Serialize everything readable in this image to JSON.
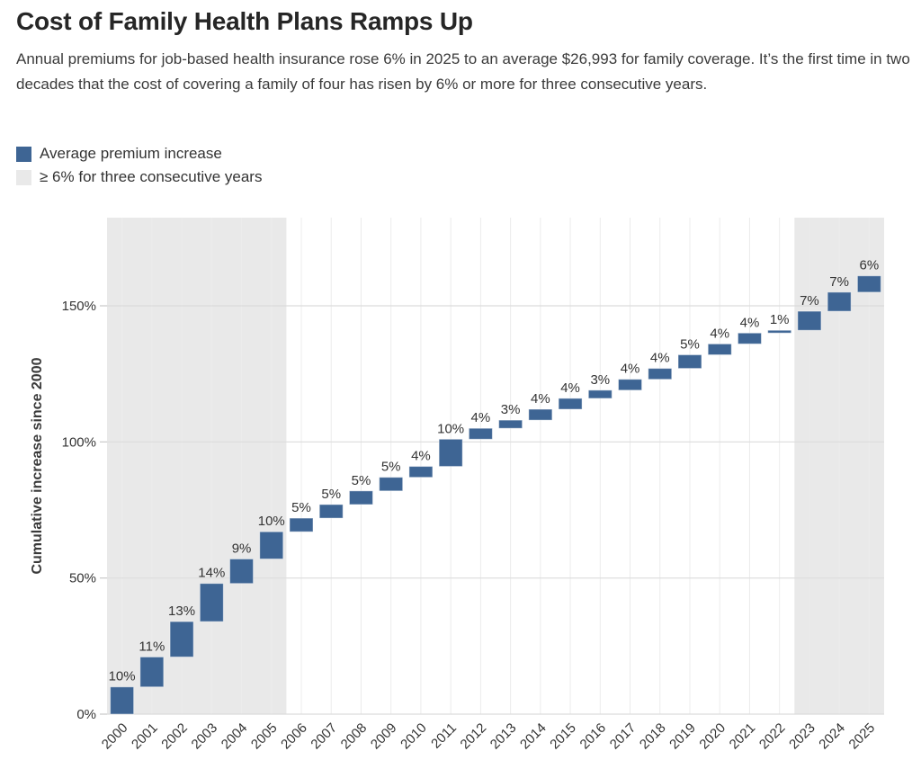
{
  "header": {
    "title": "Cost of Family Health Plans Ramps Up",
    "subtitle": "Annual premiums for job-based health insurance rose 6% in 2025 to an average $26,993 for family coverage. It’s the first time in two decades that the cost of covering a family of four has risen by 6% or more for three consecutive years."
  },
  "legend": {
    "items": [
      {
        "label": "Average premium increase",
        "swatch": "bar"
      },
      {
        "label": "≥ 6% for three consecutive years",
        "swatch": "band"
      }
    ]
  },
  "colors": {
    "bar": "#3e6594",
    "bar_edge": "rgba(255,255,255,0.45)",
    "band": "#e9e9e9",
    "hgrid": "#dcdcdc",
    "vgrid": "#ececec",
    "tick_mark": "#c8c8c8",
    "axis_text": "#333333"
  },
  "chart_data": {
    "type": "bar",
    "subtype": "waterfall",
    "title": "Cost of Family Health Plans Ramps Up",
    "xlabel": "",
    "ylabel": "Cumulative increase since 2000",
    "categories": [
      2000,
      2001,
      2002,
      2003,
      2004,
      2005,
      2006,
      2007,
      2008,
      2009,
      2010,
      2011,
      2012,
      2013,
      2014,
      2015,
      2016,
      2017,
      2018,
      2019,
      2020,
      2021,
      2022,
      2023,
      2024,
      2025
    ],
    "annual_increase_pct": [
      10,
      11,
      13,
      14,
      9,
      10,
      5,
      5,
      5,
      5,
      4,
      10,
      4,
      3,
      4,
      4,
      3,
      4,
      4,
      5,
      4,
      4,
      1,
      7,
      7,
      6
    ],
    "cumulative_end_pct": [
      10,
      21,
      34,
      48,
      57,
      67,
      72,
      77,
      82,
      87,
      91,
      101,
      105,
      108,
      112,
      116,
      119,
      123,
      127,
      132,
      136,
      140,
      141,
      148,
      155,
      161
    ],
    "bar_labels": [
      "10%",
      "11%",
      "13%",
      "14%",
      "9%",
      "10%",
      "5%",
      "5%",
      "5%",
      "5%",
      "4%",
      "10%",
      "4%",
      "3%",
      "4%",
      "4%",
      "3%",
      "4%",
      "4%",
      "5%",
      "4%",
      "4%",
      "1%",
      "7%",
      "7%",
      "6%"
    ],
    "yticks": [
      0,
      50,
      100,
      150
    ],
    "ytick_labels": [
      "0%",
      "50%",
      "100%",
      "150%"
    ],
    "ylim": [
      0,
      182
    ],
    "grid": "horizontal-and-vertical",
    "legend_position": "top-left",
    "highlight_bands": [
      {
        "start_year": 2000,
        "end_year": 2005,
        "meaning": "≥ 6% for three consecutive years"
      },
      {
        "start_year": 2023,
        "end_year": 2025,
        "meaning": "≥ 6% for three consecutive years"
      }
    ]
  }
}
